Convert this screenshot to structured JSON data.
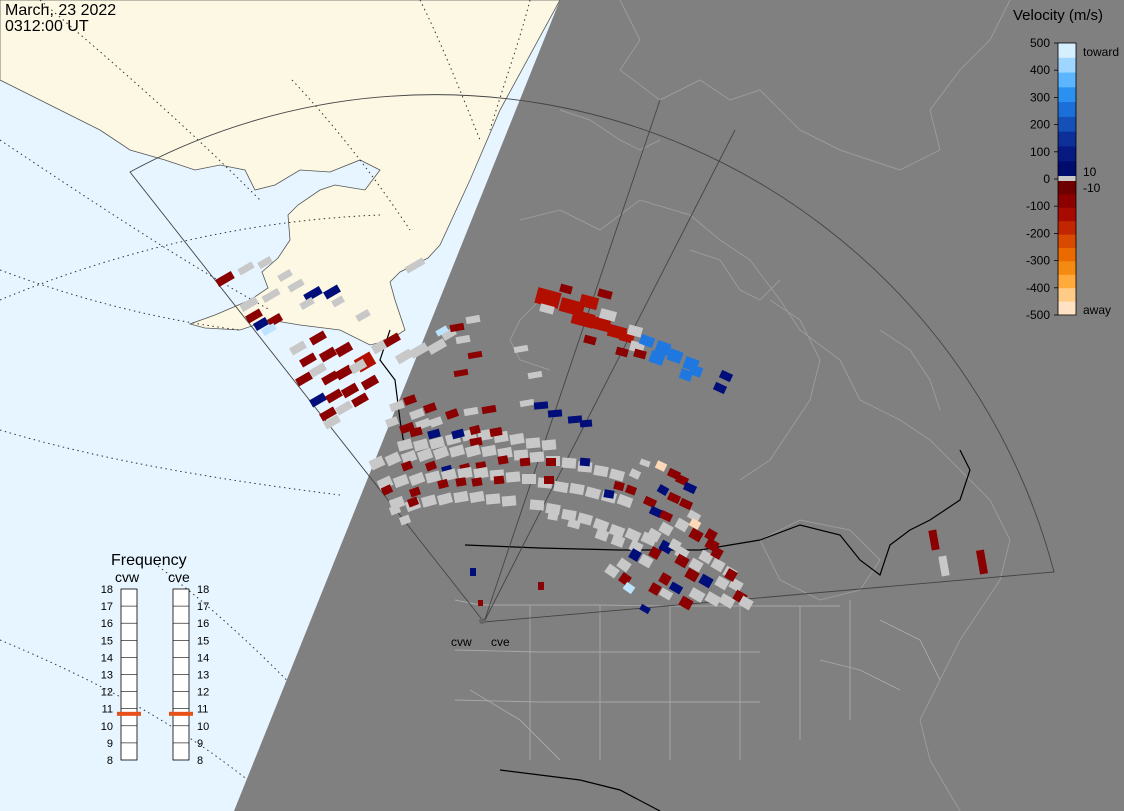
{
  "header": {
    "date": "March, 23 2022",
    "time": "0312:00 UT"
  },
  "colorbar": {
    "title": "Velocity (m/s)",
    "ticks": [
      "500",
      "400",
      "300",
      "200",
      "100",
      "0",
      "-100",
      "-200",
      "-300",
      "-400",
      "-500"
    ],
    "toward_label": "toward",
    "away_label": "away",
    "threshold_pos": "10",
    "threshold_neg": "-10",
    "colors_toward": [
      "#d6efff",
      "#9fd6ff",
      "#5cb6ff",
      "#2a91f0",
      "#1a6fd8",
      "#1450b8",
      "#0d2f99",
      "#061a82",
      "#000b6e"
    ],
    "color_zero": "#c8c8c8",
    "colors_away": [
      "#6e0000",
      "#8c0000",
      "#a80a00",
      "#c22600",
      "#d84a00",
      "#ea6a00",
      "#f58a10",
      "#ffaa3a",
      "#ffcc88",
      "#ffe2c4"
    ]
  },
  "frequency_panel": {
    "title": "Frequency",
    "radars": [
      {
        "name": "cvw",
        "frequency_mhz": 10.7
      },
      {
        "name": "cve",
        "frequency_mhz": 10.7
      }
    ],
    "ticks": [
      "18",
      "17",
      "16",
      "15",
      "14",
      "13",
      "12",
      "11",
      "10",
      "9",
      "8"
    ],
    "marker_color": "#e8501a"
  },
  "map": {
    "site_labels": [
      "cvw",
      "cve"
    ],
    "ocean_color": "#e6f5ff",
    "land_color": "#fdf8e4",
    "night_color": "#808080",
    "ground_scatter_color": "#c8c8c8"
  }
}
